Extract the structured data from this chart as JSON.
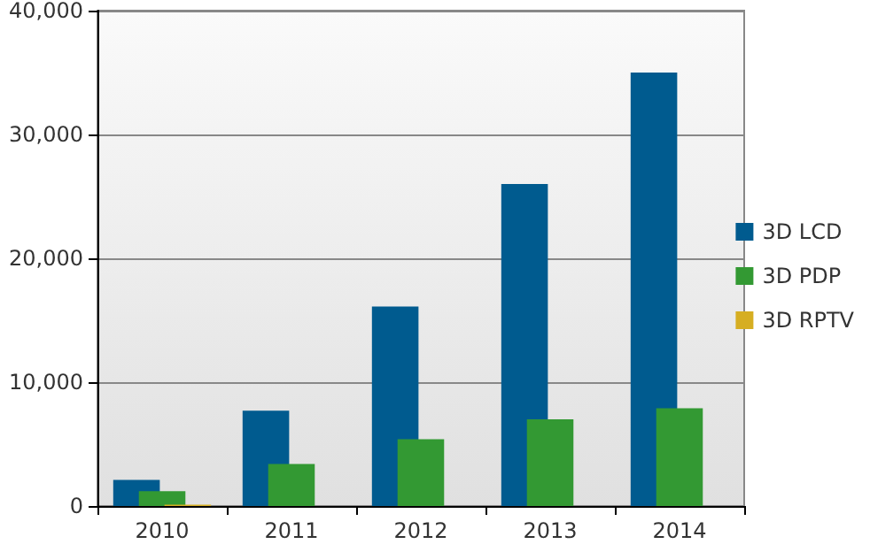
{
  "chart_data": {
    "type": "bar",
    "categories": [
      "2010",
      "2011",
      "2012",
      "2013",
      "2014"
    ],
    "series": [
      {
        "name": "3D LCD",
        "color": "#005b8f",
        "values": [
          2100,
          7700,
          16100,
          26000,
          35000
        ]
      },
      {
        "name": "3D PDP",
        "color": "#339933",
        "values": [
          1200,
          3400,
          5400,
          7000,
          7900
        ]
      },
      {
        "name": "3D RPTV",
        "color": "#d6ae22",
        "values": [
          100,
          0,
          0,
          0,
          0
        ]
      }
    ],
    "ylim": [
      0,
      40000
    ],
    "yticks": [
      {
        "value": 0,
        "label": "0"
      },
      {
        "value": 10000,
        "label": "10,000"
      },
      {
        "value": 20000,
        "label": "20,000"
      },
      {
        "value": 30000,
        "label": "30,000"
      },
      {
        "value": 40000,
        "label": "40,000"
      }
    ],
    "grid": "y",
    "legend": "right"
  }
}
